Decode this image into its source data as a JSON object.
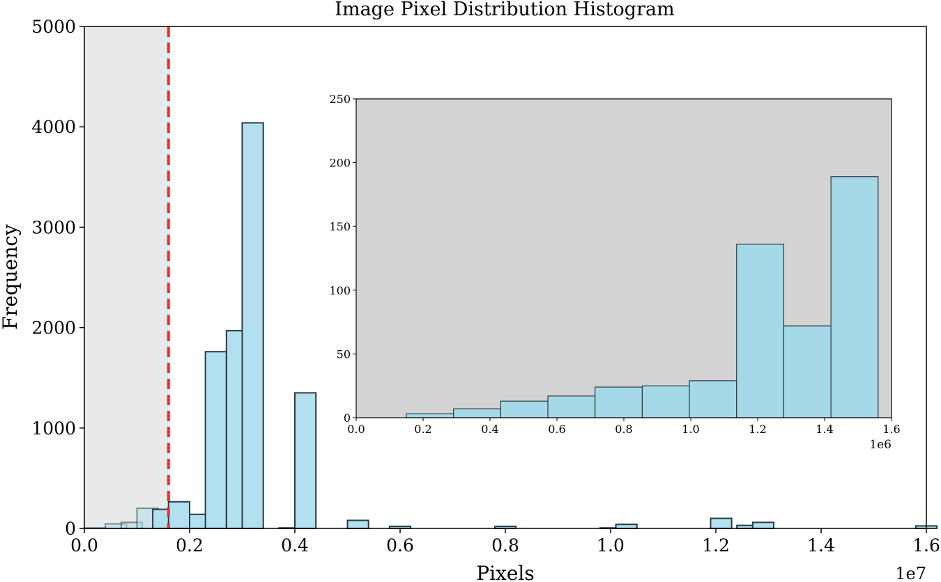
{
  "chart_data": [
    {
      "type": "bar",
      "title": "Image Pixel Distribution Histogram",
      "xlabel": "Pixels",
      "ylabel": "Frequency",
      "x_offset_label": "1e7",
      "xlim": [
        0,
        16000000
      ],
      "ylim": [
        0,
        5000
      ],
      "x_ticks": [
        "0.0",
        "0.2",
        "0.4",
        "0.6",
        "0.8",
        "1.0",
        "1.2",
        "1.4",
        "1.6"
      ],
      "y_ticks": [
        "0",
        "1000",
        "2000",
        "3000",
        "4000",
        "5000"
      ],
      "bin_width": 400000,
      "bins": [
        {
          "x": 0,
          "value": 5
        },
        {
          "x": 400000,
          "value": 45
        },
        {
          "x": 700000,
          "value": 60
        },
        {
          "x": 1000000,
          "value": 200
        },
        {
          "x": 1300000,
          "value": 190
        },
        {
          "x": 1600000,
          "value": 265
        },
        {
          "x": 2000000,
          "value": 140
        },
        {
          "x": 2300000,
          "value": 1760
        },
        {
          "x": 2700000,
          "value": 1970
        },
        {
          "x": 3000000,
          "value": 4040
        },
        {
          "x": 3700000,
          "value": 5
        },
        {
          "x": 4000000,
          "value": 1350
        },
        {
          "x": 5000000,
          "value": 80
        },
        {
          "x": 5800000,
          "value": 20
        },
        {
          "x": 7800000,
          "value": 20
        },
        {
          "x": 9800000,
          "value": 5
        },
        {
          "x": 10100000,
          "value": 40
        },
        {
          "x": 11900000,
          "value": 100
        },
        {
          "x": 12400000,
          "value": 30
        },
        {
          "x": 12700000,
          "value": 60
        },
        {
          "x": 15800000,
          "value": 25
        }
      ],
      "threshold": 1600000,
      "threshold_color": "#ff2a1a",
      "shaded_region": [
        0,
        1600000
      ],
      "bar_color": "#b2e0ef",
      "bar_edge_color": "#2b3a40",
      "shade_color": "#e8e9e9",
      "grid": false
    },
    {
      "type": "bar",
      "x_offset_label": "1e6",
      "xlim": [
        0,
        1600000
      ],
      "ylim": [
        0,
        250
      ],
      "x_ticks": [
        "0.0",
        "0.2",
        "0.4",
        "0.6",
        "0.8",
        "1.0",
        "1.2",
        "1.4",
        "1.6"
      ],
      "y_ticks": [
        "0",
        "50",
        "100",
        "150",
        "200",
        "250"
      ],
      "bin_width": 141000,
      "bins": [
        {
          "x": 150000,
          "value": 3
        },
        {
          "x": 291000,
          "value": 7
        },
        {
          "x": 432000,
          "value": 13
        },
        {
          "x": 573000,
          "value": 17
        },
        {
          "x": 714000,
          "value": 24
        },
        {
          "x": 855000,
          "value": 25
        },
        {
          "x": 996000,
          "value": 29
        },
        {
          "x": 1137000,
          "value": 136
        },
        {
          "x": 1278000,
          "value": 72
        },
        {
          "x": 1419000,
          "value": 189
        }
      ],
      "background_color": "#d3d3d3",
      "bar_color": "#a6d9e8",
      "bar_edge_color": "#2b3a40",
      "grid": false
    }
  ]
}
